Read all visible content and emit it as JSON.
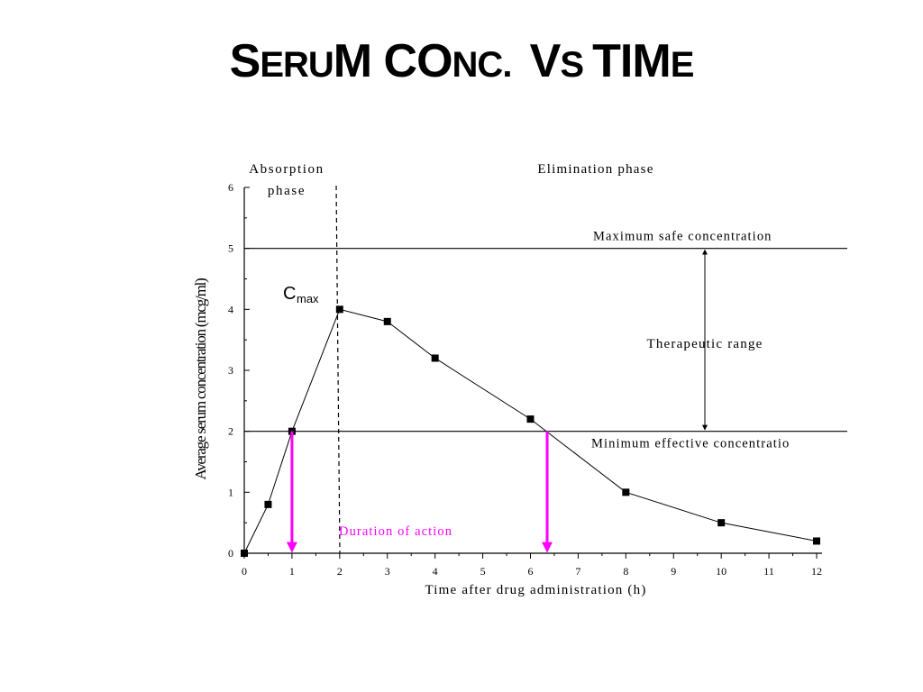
{
  "slide": {
    "title_parts": [
      {
        "text": "S",
        "size": "big"
      },
      {
        "text": "ERU",
        "size": "small"
      },
      {
        "text": "M C",
        "size": "big"
      },
      {
        "text": "O",
        "size": "big"
      },
      {
        "text": "NC.  ",
        "size": "small"
      },
      {
        "text": "V",
        "size": "big"
      },
      {
        "text": "S ",
        "size": "small"
      },
      {
        "text": "TIM",
        "size": "big"
      },
      {
        "text": "E",
        "size": "small"
      }
    ]
  },
  "chart_data": {
    "type": "line",
    "xlabel": "Time after drug administration (h)",
    "ylabel": "Average serum concentration  (mcg/ml)",
    "xlim": [
      0,
      12
    ],
    "ylim": [
      0,
      6
    ],
    "xticks": [
      0,
      1,
      2,
      3,
      4,
      5,
      6,
      7,
      8,
      9,
      10,
      11,
      12
    ],
    "yticks": [
      0,
      1,
      2,
      3,
      4,
      5,
      6
    ],
    "grid": false,
    "series": [
      {
        "x": [
          0,
          0.5,
          1,
          2,
          3,
          4,
          6,
          8,
          10,
          12
        ],
        "y": [
          0,
          0.8,
          2,
          4,
          3.8,
          3.2,
          2.2,
          1.0,
          0.5,
          0.2
        ]
      }
    ],
    "reference_lines": [
      {
        "y": 5,
        "label": "Maximum  safe concentration"
      },
      {
        "y": 2,
        "label": "Minimum  effective concentratio"
      }
    ],
    "phase_divider_x": 2,
    "annotations": {
      "absorption_line1": "Absorption",
      "absorption_line2": "phase",
      "elimination": "Elimination phase",
      "therapeutic": "Therapeutic range",
      "duration": "Duration of action",
      "cmax_main": "C",
      "cmax_sub": "max"
    },
    "duration_arrows_x": [
      1,
      6.35
    ],
    "colors": {
      "duration": "#ff00ff",
      "line": "#000000"
    }
  }
}
